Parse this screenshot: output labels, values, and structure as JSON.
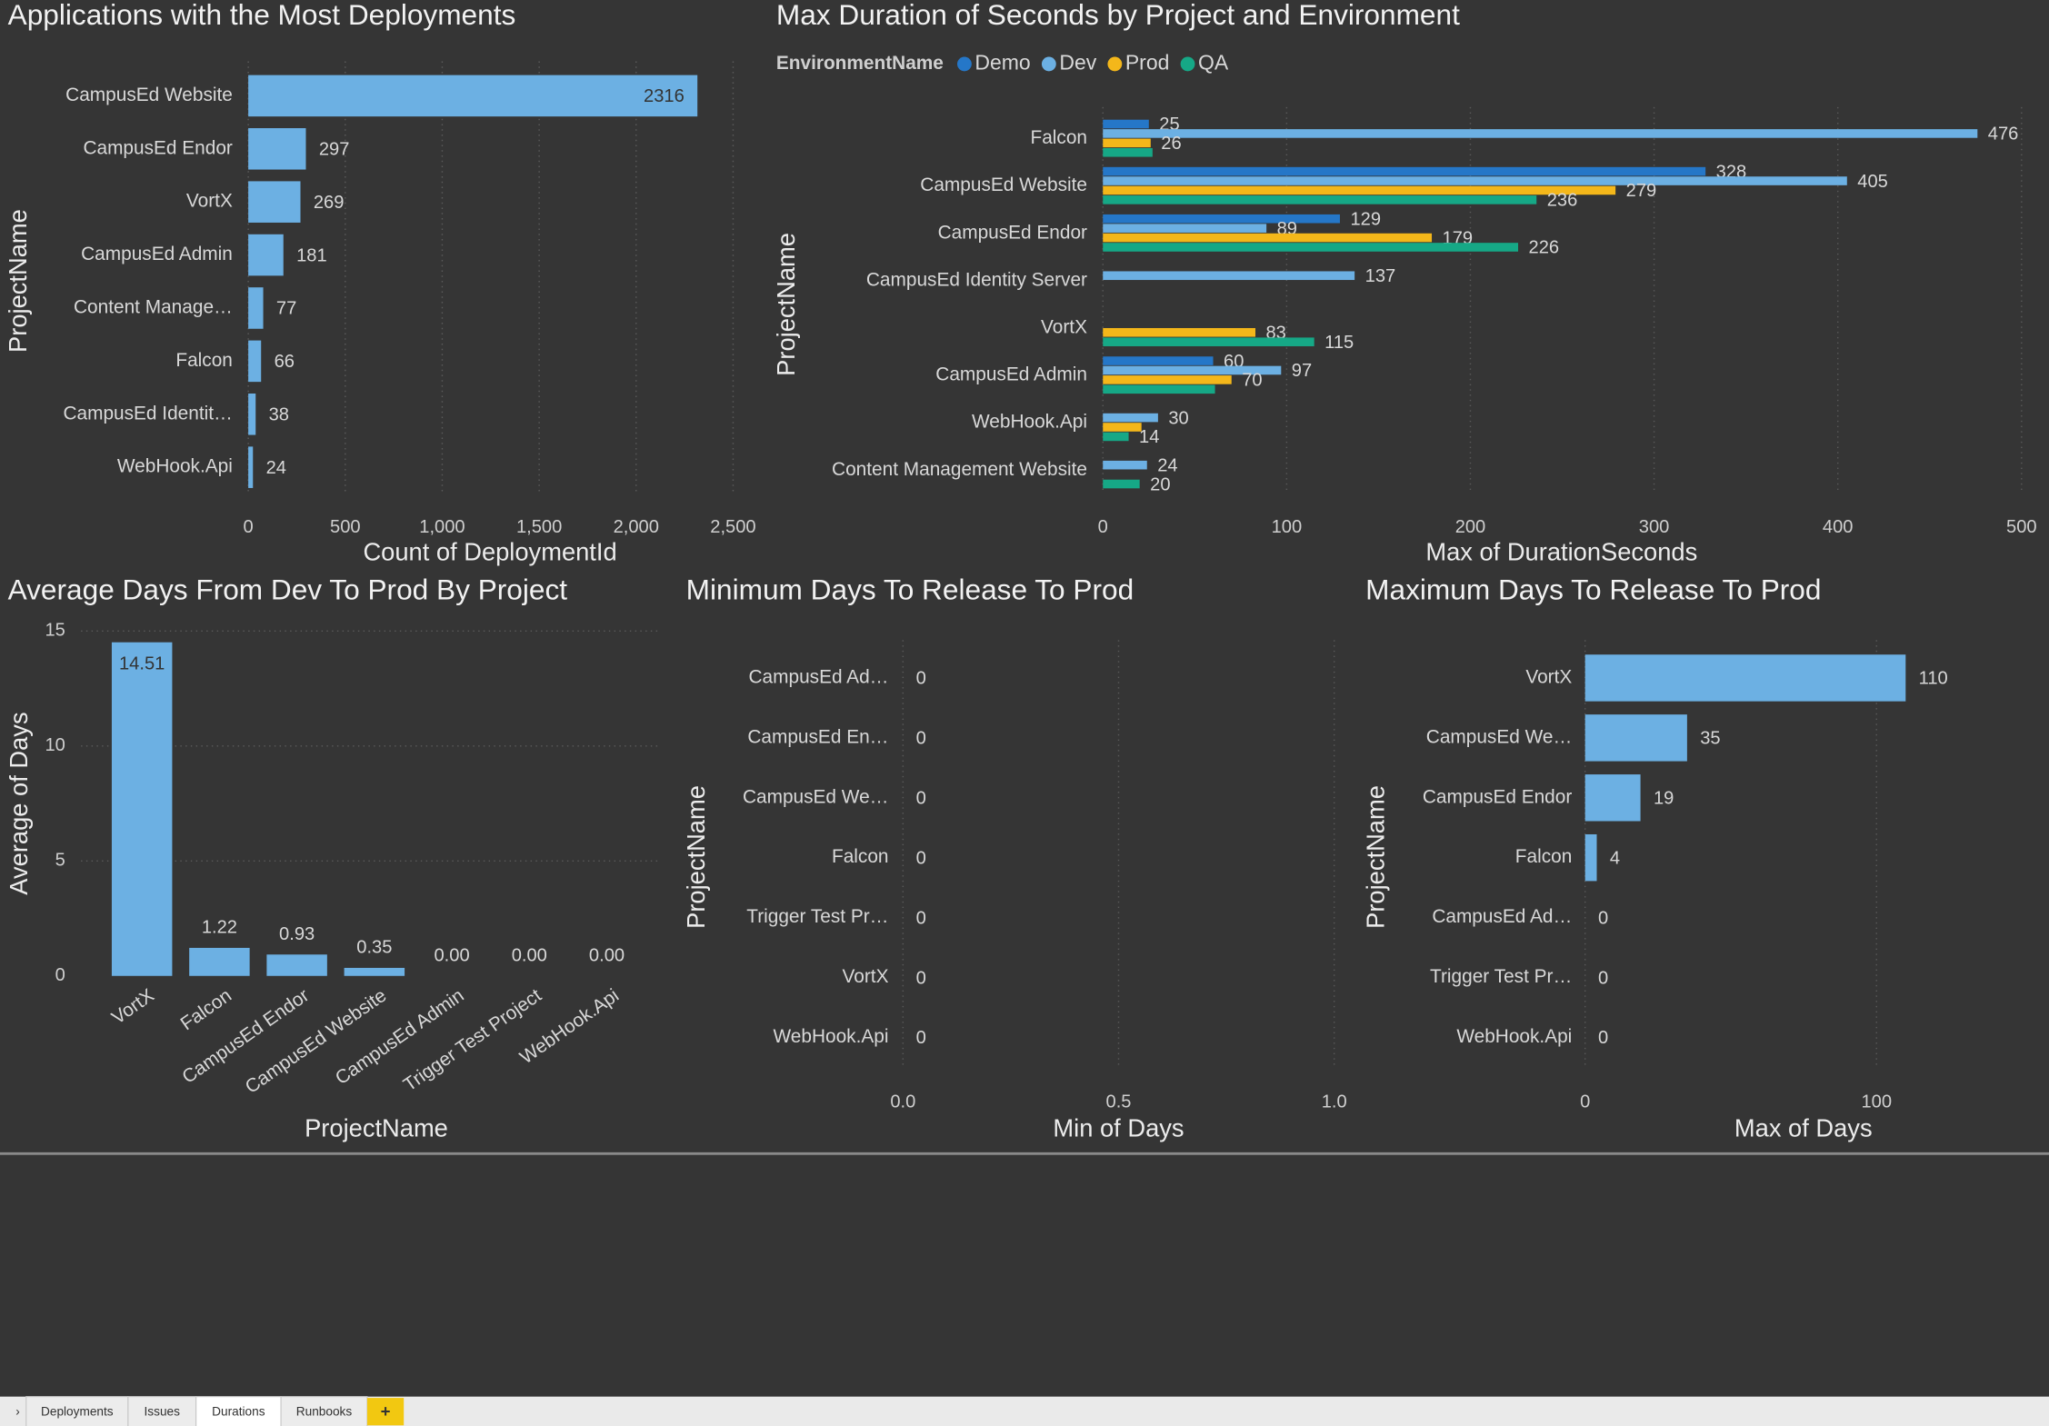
{
  "chart_data": [
    {
      "type": "bar",
      "orientation": "horizontal",
      "title": "Applications with the Most Deployments",
      "x_label": "Count of DeploymentId",
      "y_label": "ProjectName",
      "categories": [
        "CampusEd Website",
        "CampusEd Endor",
        "VortX",
        "CampusEd Admin",
        "Content Manage…",
        "Falcon",
        "CampusEd Identit…",
        "WebHook.Api"
      ],
      "values": [
        2316,
        297,
        269,
        181,
        77,
        66,
        38,
        24
      ],
      "color": "#6cb0e3",
      "xlim": [
        0,
        2500
      ],
      "xticks": [
        0,
        500,
        {
          "value": 1000,
          "label": "1,000"
        },
        {
          "value": 1500,
          "label": "1,500"
        },
        {
          "value": 2000,
          "label": "2,000"
        },
        {
          "value": 2500,
          "label": "2,500"
        }
      ],
      "grid": true
    },
    {
      "type": "grouped_bar",
      "orientation": "horizontal",
      "title": "Max Duration of Seconds by Project and Environment",
      "x_label": "Max of DurationSeconds",
      "y_label": "ProjectName",
      "legend_title": "EnvironmentName",
      "categories": [
        "Falcon",
        "CampusEd Website",
        "CampusEd Endor",
        "CampusEd Identity Server",
        "VortX",
        "CampusEd Admin",
        "WebHook.Api",
        "Content Management Website"
      ],
      "series": [
        {
          "name": "Demo",
          "color": "#2577c8",
          "values": [
            25,
            328,
            129,
            null,
            null,
            60,
            null,
            null
          ],
          "show_value_labels": [
            true,
            true,
            true,
            false,
            false,
            true,
            false,
            false
          ]
        },
        {
          "name": "Dev",
          "color": "#6cb0e3",
          "values": [
            476,
            405,
            89,
            137,
            null,
            97,
            30,
            24
          ],
          "show_value_labels": [
            true,
            true,
            true,
            true,
            false,
            true,
            true,
            true
          ]
        },
        {
          "name": "Prod",
          "color": "#f4b71a",
          "values": [
            26,
            279,
            179,
            null,
            83,
            70,
            21,
            null
          ],
          "show_value_labels": [
            true,
            true,
            true,
            false,
            true,
            true,
            false,
            false
          ]
        },
        {
          "name": "QA",
          "color": "#16a886",
          "values": [
            27,
            236,
            226,
            null,
            115,
            61,
            14,
            20
          ],
          "show_value_labels": [
            false,
            true,
            true,
            false,
            true,
            false,
            true,
            true
          ]
        }
      ],
      "xlim": [
        0,
        500
      ],
      "xticks": [
        0,
        100,
        200,
        300,
        400,
        500
      ],
      "grid": true
    },
    {
      "type": "bar",
      "orientation": "vertical",
      "title": "Average Days From Dev To Prod By Project",
      "x_label": "ProjectName",
      "y_label": "Average of Days",
      "categories": [
        "VortX",
        "Falcon",
        "CampusEd Endor",
        "CampusEd Website",
        "CampusEd Admin",
        "Trigger Test Project",
        "WebHook.Api"
      ],
      "values": [
        14.51,
        1.22,
        0.93,
        0.35,
        0,
        0,
        0
      ],
      "value_labels": [
        "14.51",
        "1.22",
        "0.93",
        "0.35",
        "0.00",
        "0.00",
        "0.00"
      ],
      "color": "#6cb0e3",
      "ylim": [
        0,
        15
      ],
      "yticks": [
        0,
        5,
        10,
        15
      ],
      "grid": true
    },
    {
      "type": "bar",
      "orientation": "horizontal",
      "title": "Minimum Days To Release To Prod",
      "x_label": "Min of Days",
      "y_label": "ProjectName",
      "categories": [
        "CampusEd Ad…",
        "CampusEd En…",
        "CampusEd We…",
        "Falcon",
        "Trigger Test Pr…",
        "VortX",
        "WebHook.Api"
      ],
      "values": [
        0,
        0,
        0,
        0,
        0,
        0,
        0
      ],
      "color": "#6cb0e3",
      "xlim": [
        0,
        1
      ],
      "xticks": [
        {
          "value": 0,
          "label": "0.0"
        },
        0.5,
        {
          "value": 1,
          "label": "1.0"
        }
      ],
      "grid": true
    },
    {
      "type": "bar",
      "orientation": "horizontal",
      "title": "Maximum Days To Release To Prod",
      "x_label": "Max of Days",
      "y_label": "ProjectName",
      "categories": [
        "VortX",
        "CampusEd We…",
        "CampusEd Endor",
        "Falcon",
        "CampusEd Ad…",
        "Trigger Test Pr…",
        "WebHook.Api"
      ],
      "values": [
        110,
        35,
        19,
        4,
        0,
        0,
        0
      ],
      "color": "#6cb0e3",
      "xlim": [
        0,
        150
      ],
      "xticks": [
        0,
        100
      ],
      "grid": true
    }
  ],
  "tabs": [
    "Deployments",
    "Issues",
    "Durations",
    "Runbooks"
  ],
  "active_tab": 2,
  "add_tab_label": "+"
}
